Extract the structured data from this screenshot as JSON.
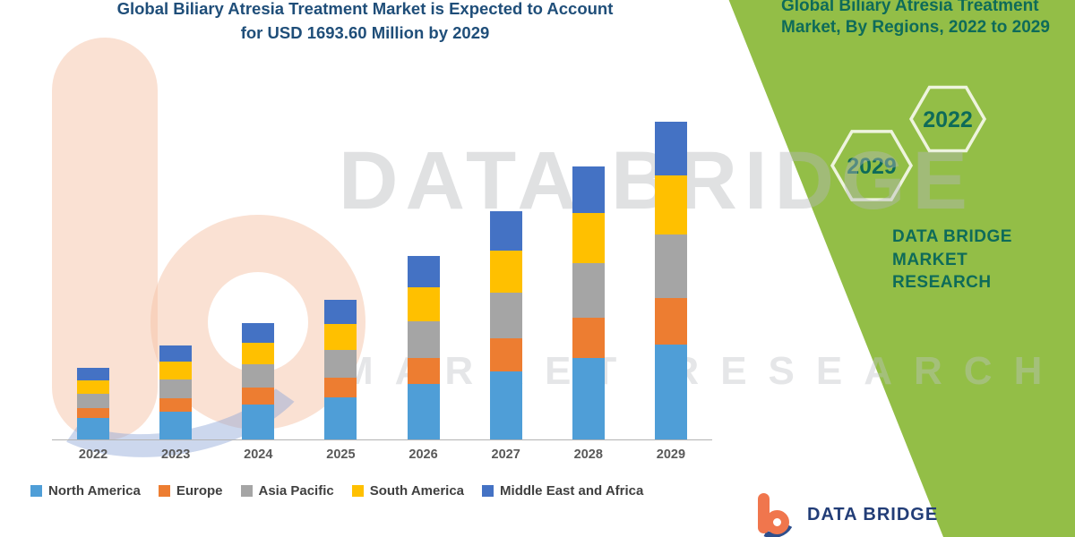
{
  "title": {
    "line1": "Global Biliary Atresia Treatment Market is Expected to Account",
    "line2": "for USD 1693.60 Million by 2029"
  },
  "watermark": {
    "line1": "DATA BRIDGE",
    "line2": "MARKET RESEARCH"
  },
  "side_panel": {
    "heading": "Global Biliary Atresia Treatment Market, By Regions, 2022 to 2029",
    "hex_left": "2029",
    "hex_right": "2022",
    "brand": "DATA BRIDGE MARKET RESEARCH",
    "panel_color": "#93BE47",
    "text_color": "#0E6B59"
  },
  "footer": {
    "brand": "DATA BRIDGE"
  },
  "chart_data": {
    "type": "bar",
    "stacked": true,
    "title": "Global Biliary Atresia Treatment Market is Expected to Account for USD 1693.60 Million by 2029",
    "units": "USD Million",
    "categories": [
      "2022",
      "2023",
      "2024",
      "2025",
      "2026",
      "2027",
      "2028",
      "2029"
    ],
    "series": [
      {
        "name": "North America",
        "color": "#4F9ED7",
        "values": [
          114,
          150,
          186,
          223,
          294,
          364,
          436,
          508
        ]
      },
      {
        "name": "Europe",
        "color": "#ED7D31",
        "values": [
          55,
          72,
          90,
          108,
          142,
          176,
          211,
          246
        ]
      },
      {
        "name": "Asia Pacific",
        "color": "#A5A5A5",
        "values": [
          76,
          100,
          124,
          149,
          196,
          243,
          291,
          339
        ]
      },
      {
        "name": "South America",
        "color": "#FFC000",
        "values": [
          70,
          93,
          115,
          138,
          181,
          225,
          269,
          313
        ]
      },
      {
        "name": "Middle East and Africa",
        "color": "#4472C4",
        "values": [
          65,
          85,
          105,
          127,
          167,
          207,
          248,
          288
        ]
      }
    ],
    "ylim": [
      0,
      1800
    ],
    "grid": false,
    "legend_position": "bottom"
  }
}
